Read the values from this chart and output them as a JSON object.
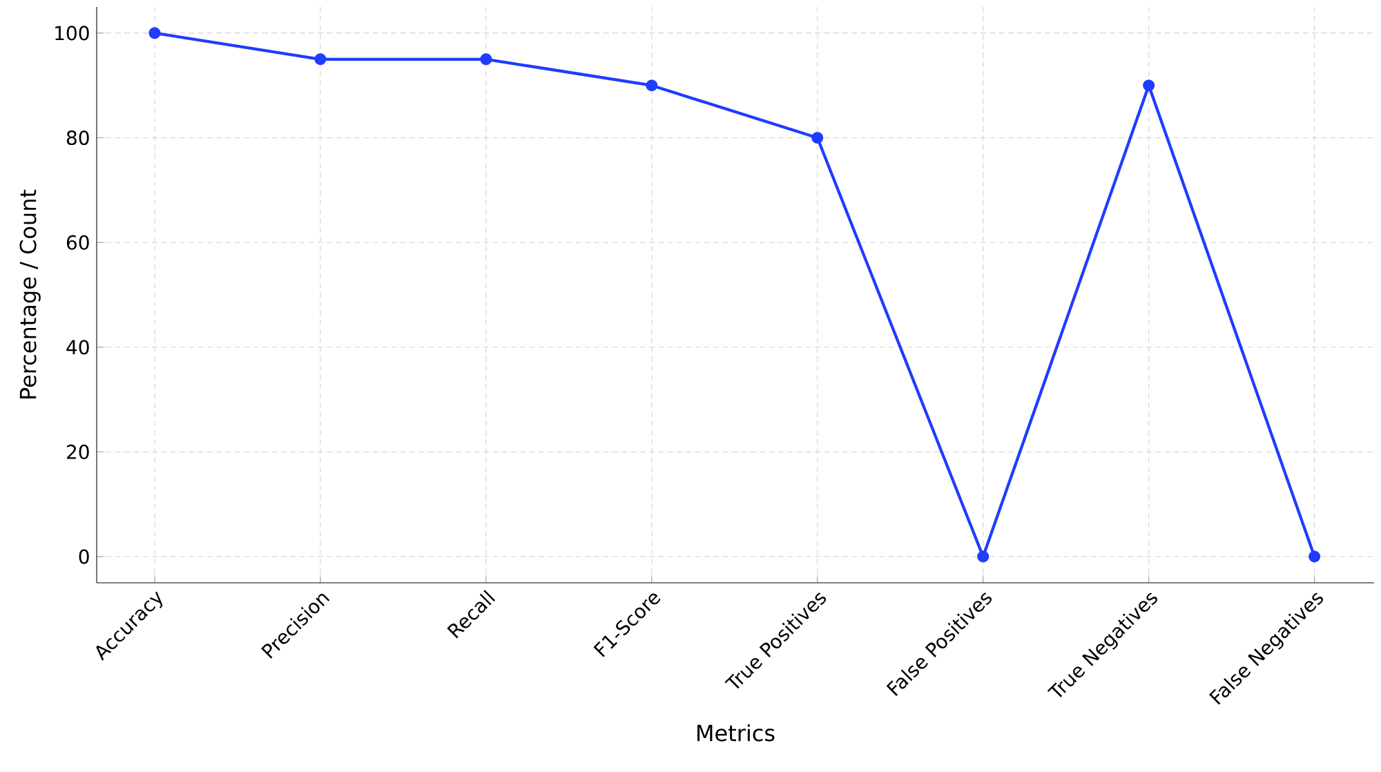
{
  "chart_data": {
    "type": "line",
    "xlabel": "Metrics",
    "ylabel": "Percentage / Count",
    "categories": [
      "Accuracy",
      "Precision",
      "Recall",
      "F1-Score",
      "True Positives",
      "False Positives",
      "True Negatives",
      "False Negatives"
    ],
    "values": [
      100,
      95,
      95,
      90,
      80,
      0,
      90,
      0
    ],
    "color": "#1f3cff",
    "ylim": [
      -5,
      105
    ],
    "yticks": [
      0,
      20,
      40,
      60,
      80,
      100
    ],
    "grid": true,
    "marker": "circle",
    "line_style": "solid"
  }
}
